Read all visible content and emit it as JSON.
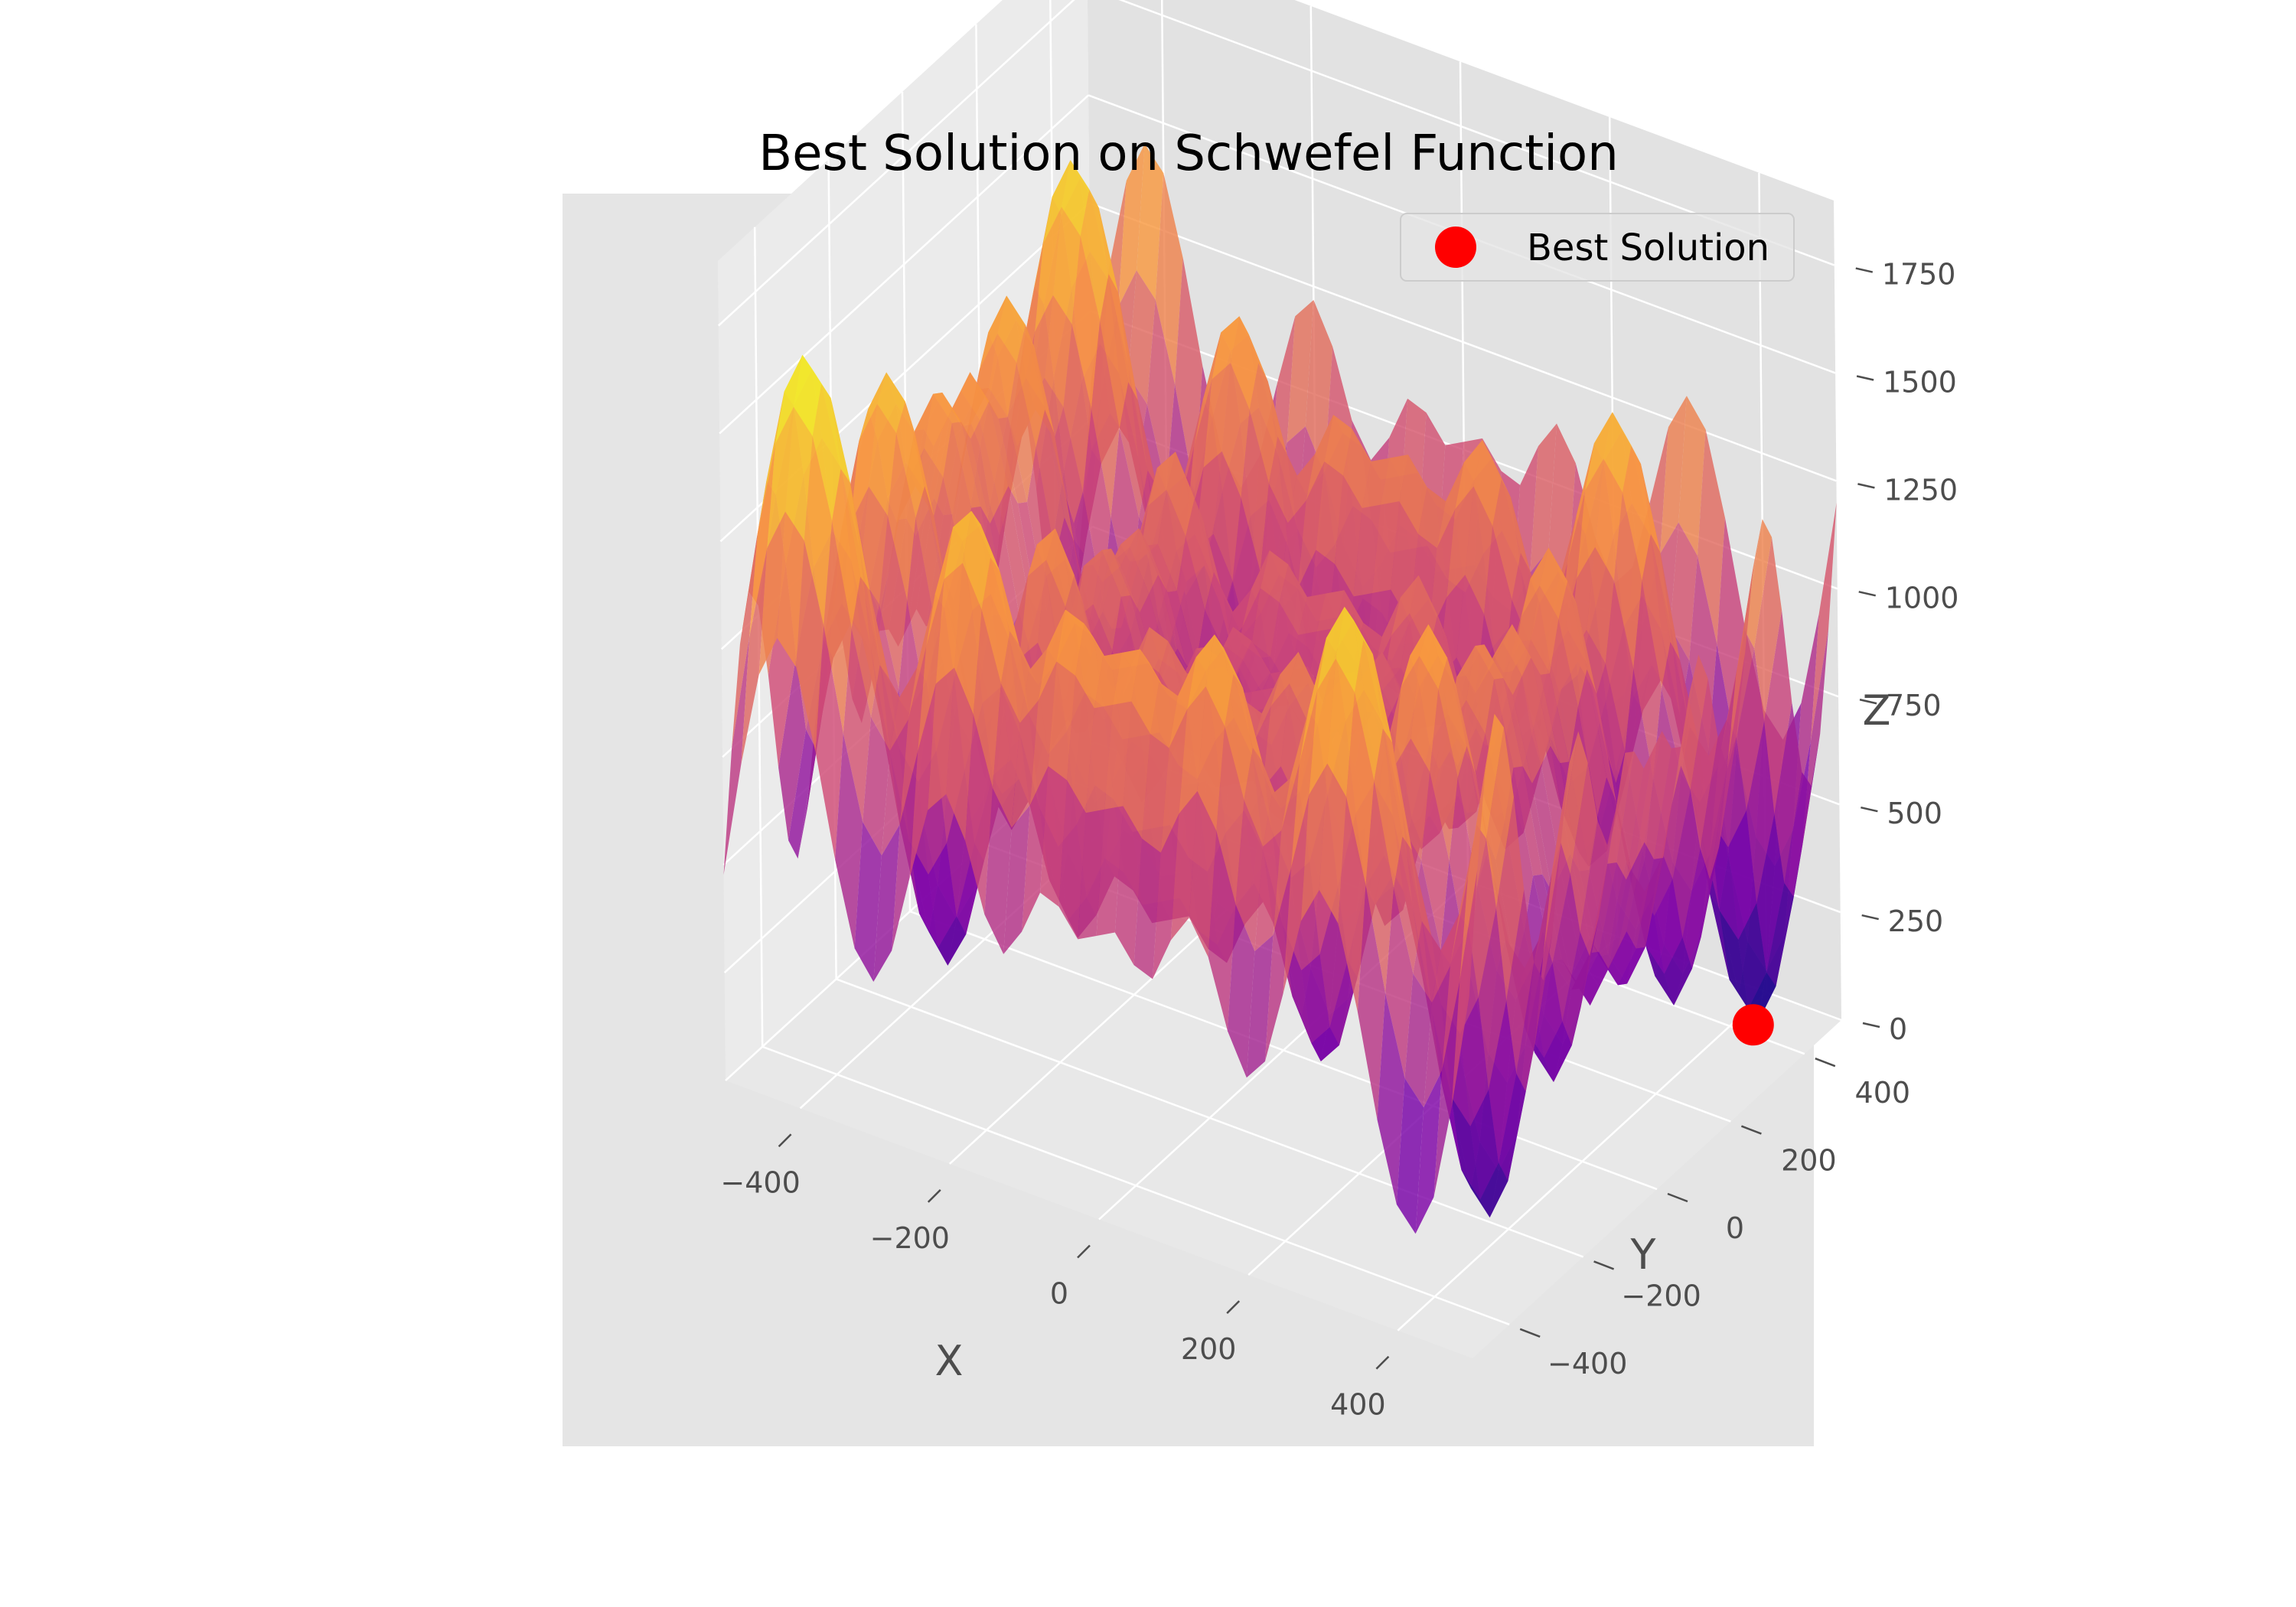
{
  "chart_data": {
    "type": "surface3d",
    "title": "Best Solution on Schwefel Function",
    "xlabel": "X",
    "ylabel": "Y",
    "zlabel": "Z",
    "xlim": [
      -500,
      500
    ],
    "ylim": [
      -500,
      500
    ],
    "zlim": [
      0,
      1750
    ],
    "x_ticks": [
      -400,
      -200,
      0,
      200,
      400
    ],
    "y_ticks": [
      -400,
      -200,
      0,
      200,
      400
    ],
    "z_ticks": [
      0,
      250,
      500,
      750,
      1000,
      1250,
      1500,
      1750
    ],
    "x_tick_labels": [
      "−400",
      "−200",
      "0",
      "200",
      "400"
    ],
    "y_tick_labels": [
      "−400",
      "−200",
      "0",
      "200",
      "400"
    ],
    "z_tick_labels": [
      "0",
      "250",
      "500",
      "750",
      "1000",
      "1250",
      "1500",
      "1750"
    ],
    "surface": {
      "function": "schwefel",
      "dimensions": 2,
      "colormap": "plasma"
    },
    "series": [
      {
        "name": "Best Solution",
        "type": "scatter",
        "color": "#ff0000",
        "points": [
          {
            "x": 420.97,
            "y": 420.97,
            "z": 0
          }
        ]
      }
    ],
    "legend": {
      "placement": "top-right"
    },
    "grid": true,
    "style": {
      "pane_color": "#e5e5e5",
      "grid_color": "#ffffff"
    }
  }
}
